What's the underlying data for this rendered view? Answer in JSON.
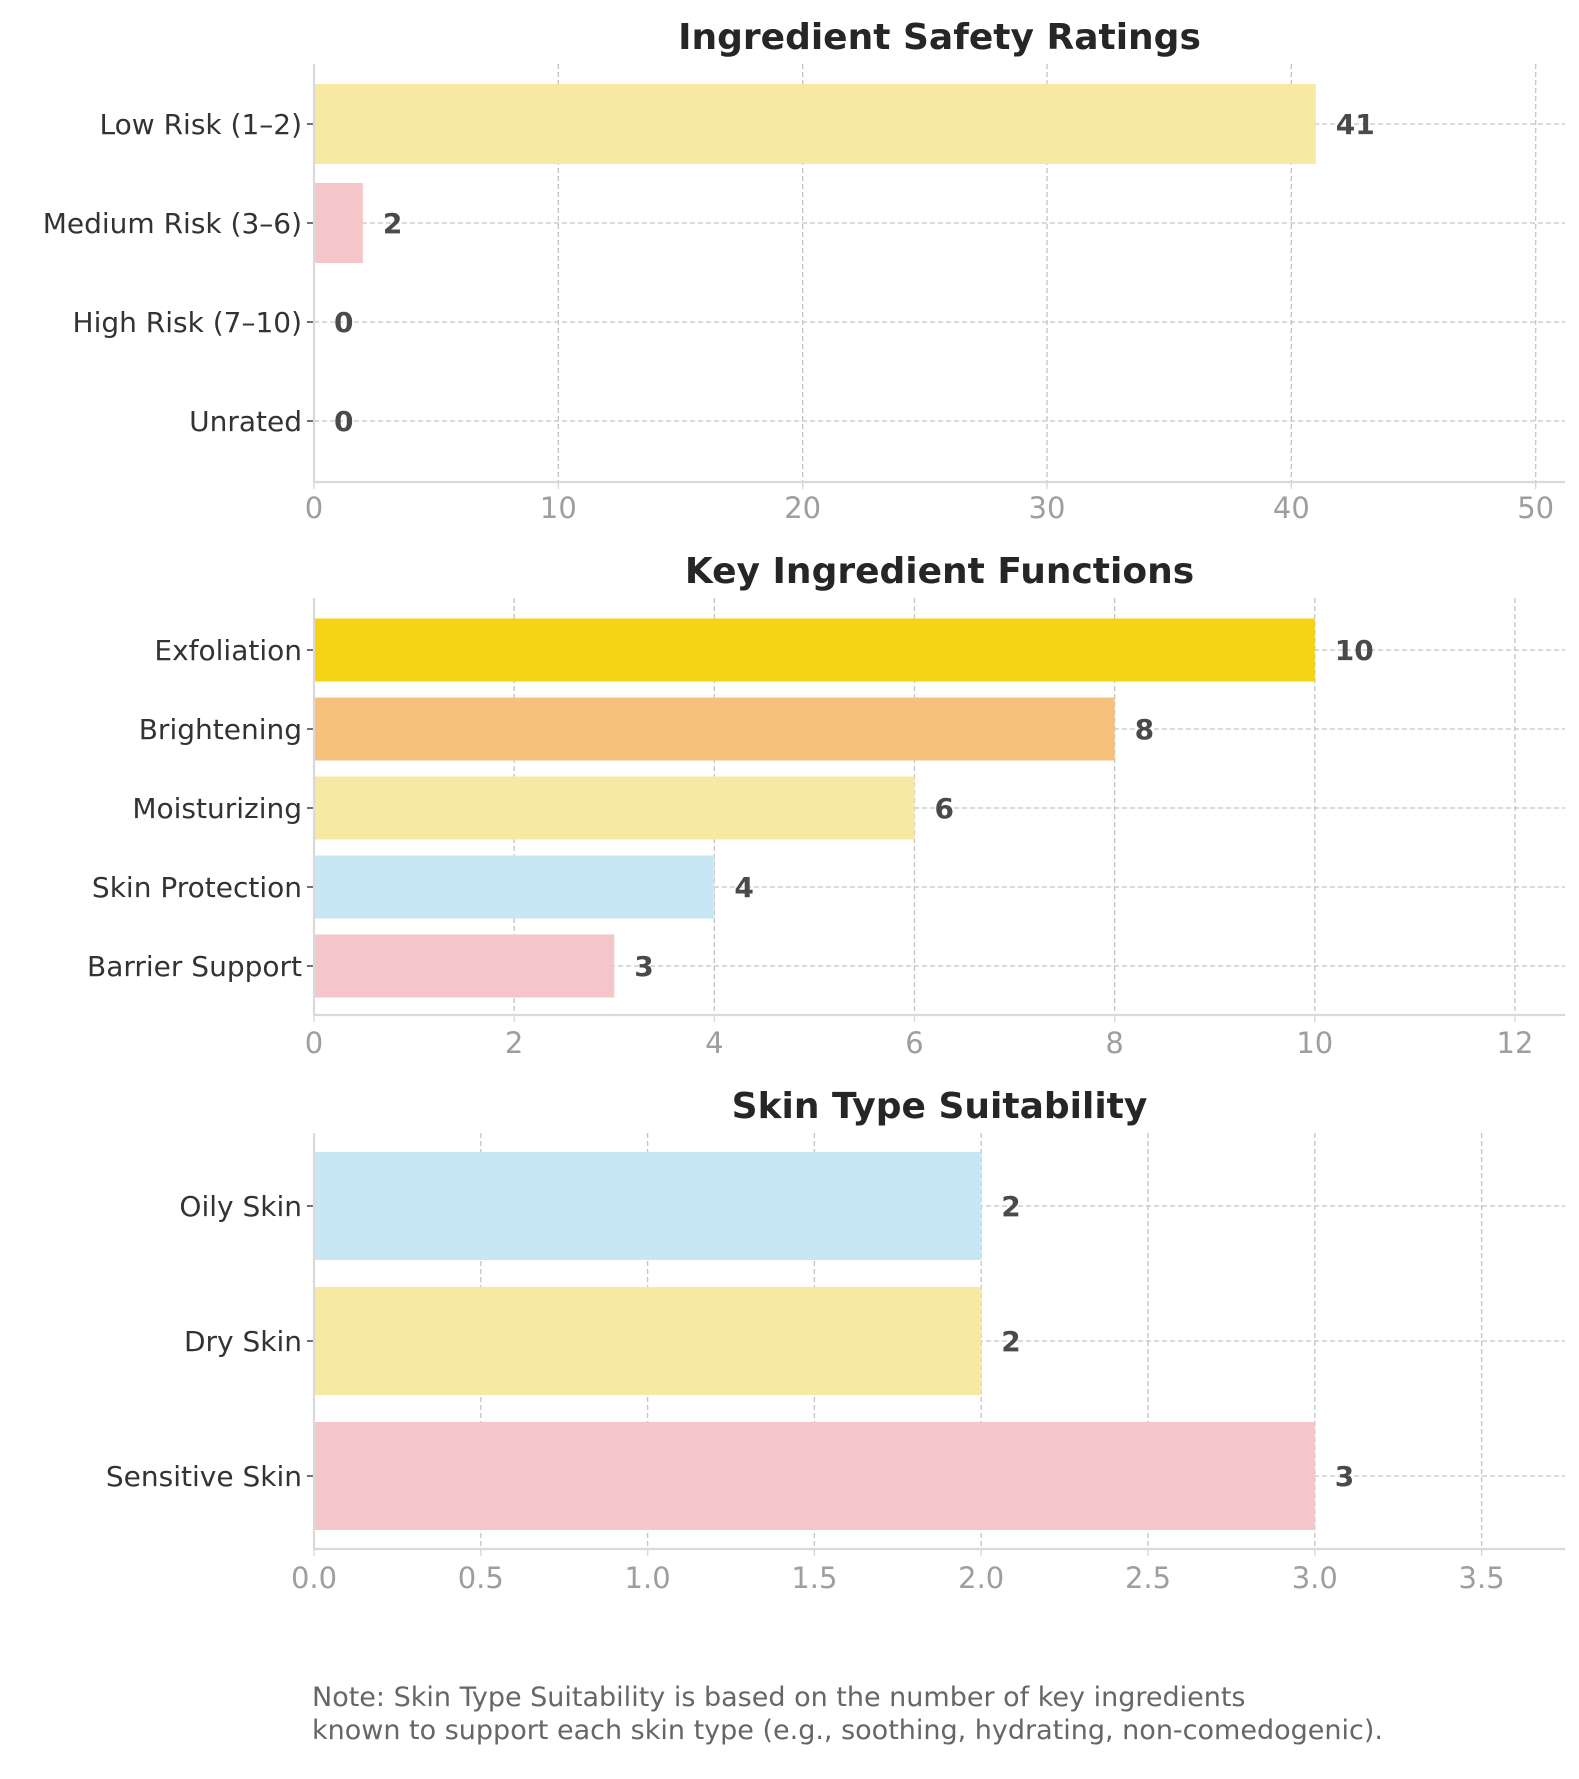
{
  "colors": {
    "yellow_soft": "#f7e8a4",
    "pink_soft": "#f4c6c9",
    "gold": "#f5d315",
    "orange_soft": "#f5c17d",
    "blue_soft": "#c6e7f3"
  },
  "chart_data": [
    {
      "type": "bar",
      "orientation": "horizontal",
      "title": "Ingredient Safety Ratings",
      "categories": [
        "Low Risk (1–2)",
        "Medium Risk (3–6)",
        "High Risk (7–10)",
        "Unrated"
      ],
      "values": [
        41,
        2,
        0,
        0
      ],
      "value_labels": [
        "41",
        "2",
        "0",
        "0"
      ],
      "colors": [
        "#f7e8a4",
        "#f4c6c9",
        "#f4c6c9",
        "#f4c6c9"
      ],
      "xlim": [
        0,
        51.2
      ],
      "xticks": [
        0,
        10,
        20,
        30,
        40,
        50
      ],
      "xtick_labels": [
        "0",
        "10",
        "20",
        "30",
        "40",
        "50"
      ],
      "grid": true
    },
    {
      "type": "bar",
      "orientation": "horizontal",
      "title": "Key Ingredient Functions",
      "categories": [
        "Exfoliation",
        "Brightening",
        "Moisturizing",
        "Skin Protection",
        "Barrier Support"
      ],
      "values": [
        10,
        8,
        6,
        4,
        3
      ],
      "value_labels": [
        "10",
        "8",
        "6",
        "4",
        "3"
      ],
      "colors": [
        "#f5d315",
        "#f5c17d",
        "#f7e8a4",
        "#c6e7f3",
        "#f4c6c9"
      ],
      "xlim": [
        0,
        12.5
      ],
      "xticks": [
        0,
        2,
        4,
        6,
        8,
        10,
        12
      ],
      "xtick_labels": [
        "0",
        "2",
        "4",
        "6",
        "8",
        "10",
        "12"
      ],
      "grid": true
    },
    {
      "type": "bar",
      "orientation": "horizontal",
      "title": "Skin Type Suitability",
      "categories": [
        "Oily Skin",
        "Dry Skin",
        "Sensitive Skin"
      ],
      "values": [
        2,
        2,
        3
      ],
      "value_labels": [
        "2",
        "2",
        "3"
      ],
      "colors": [
        "#c6e7f3",
        "#f7e8a4",
        "#f4c6c9"
      ],
      "xlim": [
        0,
        3.75
      ],
      "xticks": [
        0,
        0.5,
        1.0,
        1.5,
        2.0,
        2.5,
        3.0,
        3.5
      ],
      "xtick_labels": [
        "0.0",
        "0.5",
        "1.0",
        "1.5",
        "2.0",
        "2.5",
        "3.0",
        "3.5"
      ],
      "grid": true
    }
  ],
  "note": {
    "line1": "Note: Skin Type Suitability is based on the number of key ingredients",
    "line2": "known to support each skin type (e.g., soothing, hydrating, non-comedogenic)."
  }
}
